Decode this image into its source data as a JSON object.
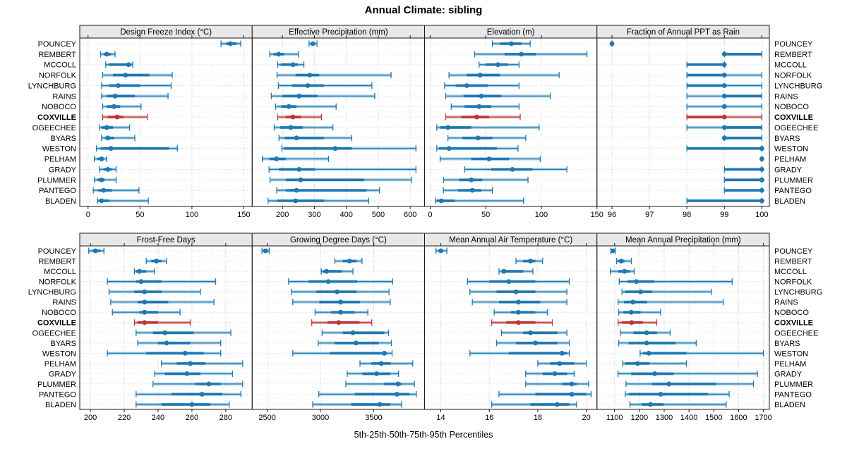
{
  "title": "Annual Climate: sibling",
  "xlabel": "5th-25th-50th-75th-95th Percentiles",
  "highlight_series": "COXVILLE",
  "colors": {
    "blue": "#1f78b4",
    "blue_light": "#a6cee3",
    "red": "#c03538",
    "red_light": "#e2aeae",
    "header_bg": "#e8e8e8",
    "border": "#1a1a1a",
    "grid": "#c9c9c9",
    "text": "#000000"
  },
  "chart_data": {
    "type": "trellis-dotplot",
    "percentiles": [
      5,
      25,
      50,
      75,
      95
    ],
    "legend_note": "each row shows 5th-25th-50th-75th-95th percentile range with median dot",
    "rows": [
      "POUNCEY",
      "REMBERT",
      "MCCOLL",
      "NORFOLK",
      "LYNCHBURG",
      "RAINS",
      "NOBOCO",
      "COXVILLE",
      "OGEECHEE",
      "BYARS",
      "WESTON",
      "PELHAM",
      "GRADY",
      "PLUMMER",
      "PANTEGO",
      "BLADEN"
    ],
    "panels": [
      {
        "title": "Design Freeze Index (°C)",
        "ticks": [
          0,
          50,
          100,
          150
        ],
        "domain": [
          -8,
          158
        ],
        "values": [
          [
            128,
            133,
            137,
            143,
            147
          ],
          [
            12,
            15,
            18,
            22,
            26
          ],
          [
            17,
            20,
            39,
            42,
            43
          ],
          [
            14,
            24,
            36,
            59,
            81
          ],
          [
            13,
            20,
            29,
            50,
            80
          ],
          [
            13,
            18,
            26,
            45,
            77
          ],
          [
            14,
            18,
            25,
            31,
            51
          ],
          [
            14,
            19,
            28,
            34,
            57
          ],
          [
            11,
            13,
            18,
            24,
            40
          ],
          [
            13,
            16,
            19,
            25,
            45
          ],
          [
            8,
            12,
            22,
            78,
            86
          ],
          [
            6,
            9,
            13,
            15,
            18
          ],
          [
            11,
            15,
            19,
            23,
            27
          ],
          [
            6,
            9,
            13,
            16,
            27
          ],
          [
            5,
            10,
            15,
            23,
            49
          ],
          [
            9,
            10,
            13,
            20,
            58
          ]
        ]
      },
      {
        "title": "Effective Precipitation (mm)",
        "ticks": [
          200,
          300,
          400,
          500,
          600
        ],
        "domain": [
          105,
          645
        ],
        "values": [
          [
            283,
            290,
            295,
            300,
            308
          ],
          [
            160,
            172,
            188,
            205,
            250
          ],
          [
            185,
            195,
            233,
            248,
            267
          ],
          [
            183,
            241,
            285,
            315,
            540
          ],
          [
            187,
            230,
            279,
            330,
            480
          ],
          [
            165,
            200,
            252,
            310,
            489
          ],
          [
            178,
            196,
            220,
            244,
            368
          ],
          [
            185,
            210,
            233,
            258,
            322
          ],
          [
            174,
            193,
            226,
            263,
            358
          ],
          [
            189,
            207,
            244,
            330,
            417
          ],
          [
            198,
            205,
            365,
            418,
            618
          ],
          [
            137,
            159,
            181,
            210,
            344
          ],
          [
            158,
            189,
            252,
            302,
            618
          ],
          [
            161,
            210,
            257,
            456,
            604
          ],
          [
            182,
            210,
            244,
            463,
            504
          ],
          [
            155,
            182,
            241,
            330,
            470
          ]
        ]
      },
      {
        "title": "Elevation (m)",
        "ticks": [
          0,
          50,
          100,
          150
        ],
        "domain": [
          -5,
          150
        ],
        "values": [
          [
            56,
            63,
            73,
            82,
            90
          ],
          [
            40,
            67,
            82,
            95,
            141
          ],
          [
            44,
            50,
            61,
            70,
            80
          ],
          [
            17,
            33,
            45,
            63,
            116
          ],
          [
            13,
            23,
            33,
            52,
            80
          ],
          [
            14,
            30,
            46,
            64,
            108
          ],
          [
            19,
            31,
            44,
            55,
            80
          ],
          [
            14,
            28,
            42,
            53,
            81
          ],
          [
            6,
            9,
            16,
            37,
            98
          ],
          [
            16,
            29,
            43,
            56,
            86
          ],
          [
            6,
            8,
            17,
            60,
            79
          ],
          [
            9,
            37,
            53,
            71,
            99
          ],
          [
            31,
            55,
            74,
            92,
            123
          ],
          [
            12,
            26,
            37,
            47,
            88
          ],
          [
            12,
            25,
            38,
            46,
            56
          ],
          [
            5,
            6,
            10,
            22,
            84
          ]
        ]
      },
      {
        "title": "Fraction of Annual PPT as Rain",
        "ticks": [
          96,
          97,
          98,
          99,
          100
        ],
        "domain": [
          95.6,
          100.2
        ],
        "values": [
          [
            96,
            96,
            96,
            96,
            96
          ],
          [
            99,
            99,
            99,
            100,
            100
          ],
          [
            98,
            98,
            99,
            99,
            99
          ],
          [
            98,
            98,
            99,
            99,
            100
          ],
          [
            98,
            98,
            99,
            99,
            100
          ],
          [
            98,
            99,
            99,
            100,
            100
          ],
          [
            98,
            99,
            99,
            99,
            100
          ],
          [
            98,
            98,
            99,
            99,
            100
          ],
          [
            98,
            99,
            99,
            100,
            100
          ],
          [
            99,
            99,
            99,
            100,
            100
          ],
          [
            98,
            98,
            100,
            100,
            100
          ],
          [
            100,
            100,
            100,
            100,
            100
          ],
          [
            99,
            99,
            100,
            100,
            100
          ],
          [
            99,
            99,
            100,
            100,
            100
          ],
          [
            99,
            99,
            100,
            100,
            100
          ],
          [
            98,
            98,
            100,
            100,
            100
          ]
        ]
      },
      {
        "title": "Frost-Free Days",
        "ticks": [
          200,
          220,
          240,
          260,
          280
        ],
        "domain": [
          193.7,
          295.6
        ],
        "values": [
          [
            199,
            201,
            203,
            206,
            208
          ],
          [
            233,
            236,
            239,
            242,
            245
          ],
          [
            226,
            227,
            229,
            233,
            238
          ],
          [
            210,
            227,
            230,
            242,
            274
          ],
          [
            211,
            226,
            232,
            242,
            265
          ],
          [
            212,
            228,
            232,
            246,
            273
          ],
          [
            213,
            229,
            232,
            240,
            253
          ],
          [
            226,
            228,
            232,
            240,
            259
          ],
          [
            227,
            237,
            244,
            261,
            283
          ],
          [
            228,
            240,
            245,
            259,
            277
          ],
          [
            210,
            233,
            256,
            267,
            277
          ],
          [
            242,
            251,
            259,
            268,
            290
          ],
          [
            238,
            244,
            257,
            265,
            284
          ],
          [
            237,
            262,
            270,
            277,
            290
          ],
          [
            227,
            248,
            266,
            278,
            289
          ],
          [
            227,
            242,
            260,
            271,
            282
          ]
        ]
      },
      {
        "title": "Growing Degree Days (°C)",
        "ticks": [
          2500,
          3000,
          3500
        ],
        "domain": [
          2358,
          3978
        ],
        "values": [
          [
            2450,
            2465,
            2483,
            2500,
            2518
          ],
          [
            3135,
            3210,
            3273,
            3340,
            3390
          ],
          [
            3007,
            3023,
            3056,
            3200,
            3305
          ],
          [
            2700,
            2889,
            3073,
            3345,
            3678
          ],
          [
            2727,
            2962,
            3156,
            3340,
            3644
          ],
          [
            2740,
            2989,
            3189,
            3371,
            3656
          ],
          [
            2949,
            3100,
            3189,
            3322,
            3445
          ],
          [
            2918,
            3067,
            3171,
            3367,
            3482
          ],
          [
            3015,
            3210,
            3305,
            3600,
            3640
          ],
          [
            2978,
            3133,
            3333,
            3549,
            3667
          ],
          [
            2740,
            3089,
            3600,
            3625,
            3673
          ],
          [
            3371,
            3478,
            3571,
            3660,
            3867
          ],
          [
            3251,
            3393,
            3527,
            3656,
            3733
          ],
          [
            3238,
            3600,
            3727,
            3762,
            3882
          ],
          [
            2984,
            3322,
            3718,
            3838,
            3900
          ],
          [
            2927,
            3289,
            3556,
            3656,
            3762
          ]
        ]
      },
      {
        "title": "Mean Annual Air Temperature (°C)",
        "ticks": [
          14,
          16,
          18,
          20
        ],
        "domain": [
          13.33,
          20.44
        ],
        "values": [
          [
            13.8,
            13.9,
            14.0,
            14.1,
            14.25
          ],
          [
            17.1,
            17.4,
            17.7,
            17.9,
            18.2
          ],
          [
            16.4,
            16.5,
            16.6,
            17.4,
            17.8
          ],
          [
            15.1,
            16.0,
            16.8,
            17.9,
            19.3
          ],
          [
            15.2,
            16.3,
            17.1,
            17.9,
            19.2
          ],
          [
            15.3,
            16.4,
            17.2,
            18.1,
            19.2
          ],
          [
            16.2,
            16.9,
            17.2,
            17.9,
            18.4
          ],
          [
            16.1,
            16.7,
            17.2,
            17.9,
            18.6
          ],
          [
            16.5,
            17.4,
            17.7,
            18.8,
            19.2
          ],
          [
            16.3,
            17.1,
            17.9,
            18.8,
            19.3
          ],
          [
            15.2,
            16.8,
            19.0,
            19.2,
            19.3
          ],
          [
            18.0,
            18.5,
            18.9,
            19.5,
            20.0
          ],
          [
            17.5,
            18.2,
            18.7,
            19.2,
            19.5
          ],
          [
            17.5,
            19.0,
            19.4,
            19.6,
            20.1
          ],
          [
            16.4,
            17.9,
            19.4,
            20.0,
            20.2
          ],
          [
            16.1,
            17.7,
            18.8,
            19.3,
            19.6
          ]
        ]
      },
      {
        "title": "Mean Annual Precipitation (mm)",
        "ticks": [
          1100,
          1200,
          1300,
          1400,
          1500,
          1600,
          1700
        ],
        "domain": [
          1029,
          1724
        ],
        "values": [
          [
            1085,
            1089,
            1093,
            1098,
            1103
          ],
          [
            1108,
            1114,
            1127,
            1140,
            1168
          ],
          [
            1083,
            1114,
            1140,
            1162,
            1179
          ],
          [
            1119,
            1152,
            1188,
            1260,
            1574
          ],
          [
            1130,
            1143,
            1205,
            1252,
            1490
          ],
          [
            1114,
            1138,
            1174,
            1231,
            1538
          ],
          [
            1117,
            1136,
            1167,
            1205,
            1286
          ],
          [
            1114,
            1130,
            1169,
            1214,
            1270
          ],
          [
            1124,
            1176,
            1229,
            1271,
            1324
          ],
          [
            1117,
            1157,
            1229,
            1346,
            1429
          ],
          [
            1203,
            1214,
            1238,
            1390,
            1700
          ],
          [
            1133,
            1143,
            1193,
            1241,
            1390
          ],
          [
            1114,
            1167,
            1262,
            1338,
            1676
          ],
          [
            1146,
            1250,
            1319,
            1510,
            1660
          ],
          [
            1143,
            1157,
            1286,
            1476,
            1562
          ],
          [
            1162,
            1210,
            1245,
            1298,
            1550
          ]
        ]
      }
    ]
  }
}
